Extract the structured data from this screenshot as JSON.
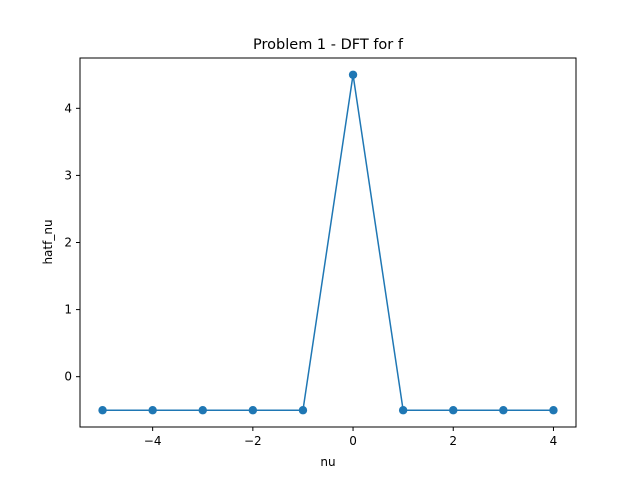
{
  "chart_data": {
    "type": "line",
    "title": "Problem 1 - DFT for f",
    "xlabel": "nu",
    "ylabel": "hatf_nu",
    "xlim": [
      -5.45,
      4.45
    ],
    "ylim": [
      -0.75,
      4.75
    ],
    "xticks": [
      -4,
      -2,
      0,
      2,
      4
    ],
    "xtick_labels": [
      "−4",
      "−2",
      "0",
      "2",
      "4"
    ],
    "yticks": [
      0,
      1,
      2,
      3,
      4
    ],
    "ytick_labels": [
      "0",
      "1",
      "2",
      "3",
      "4"
    ],
    "grid": false,
    "series": [
      {
        "color": "#1f77b4",
        "marker": "circle",
        "x": [
          -5,
          -4,
          -3,
          -2,
          -1,
          0,
          1,
          2,
          3,
          4
        ],
        "y": [
          -0.5,
          -0.5,
          -0.5,
          -0.5,
          -0.5,
          4.5,
          -0.5,
          -0.5,
          -0.5,
          -0.5
        ]
      }
    ]
  }
}
